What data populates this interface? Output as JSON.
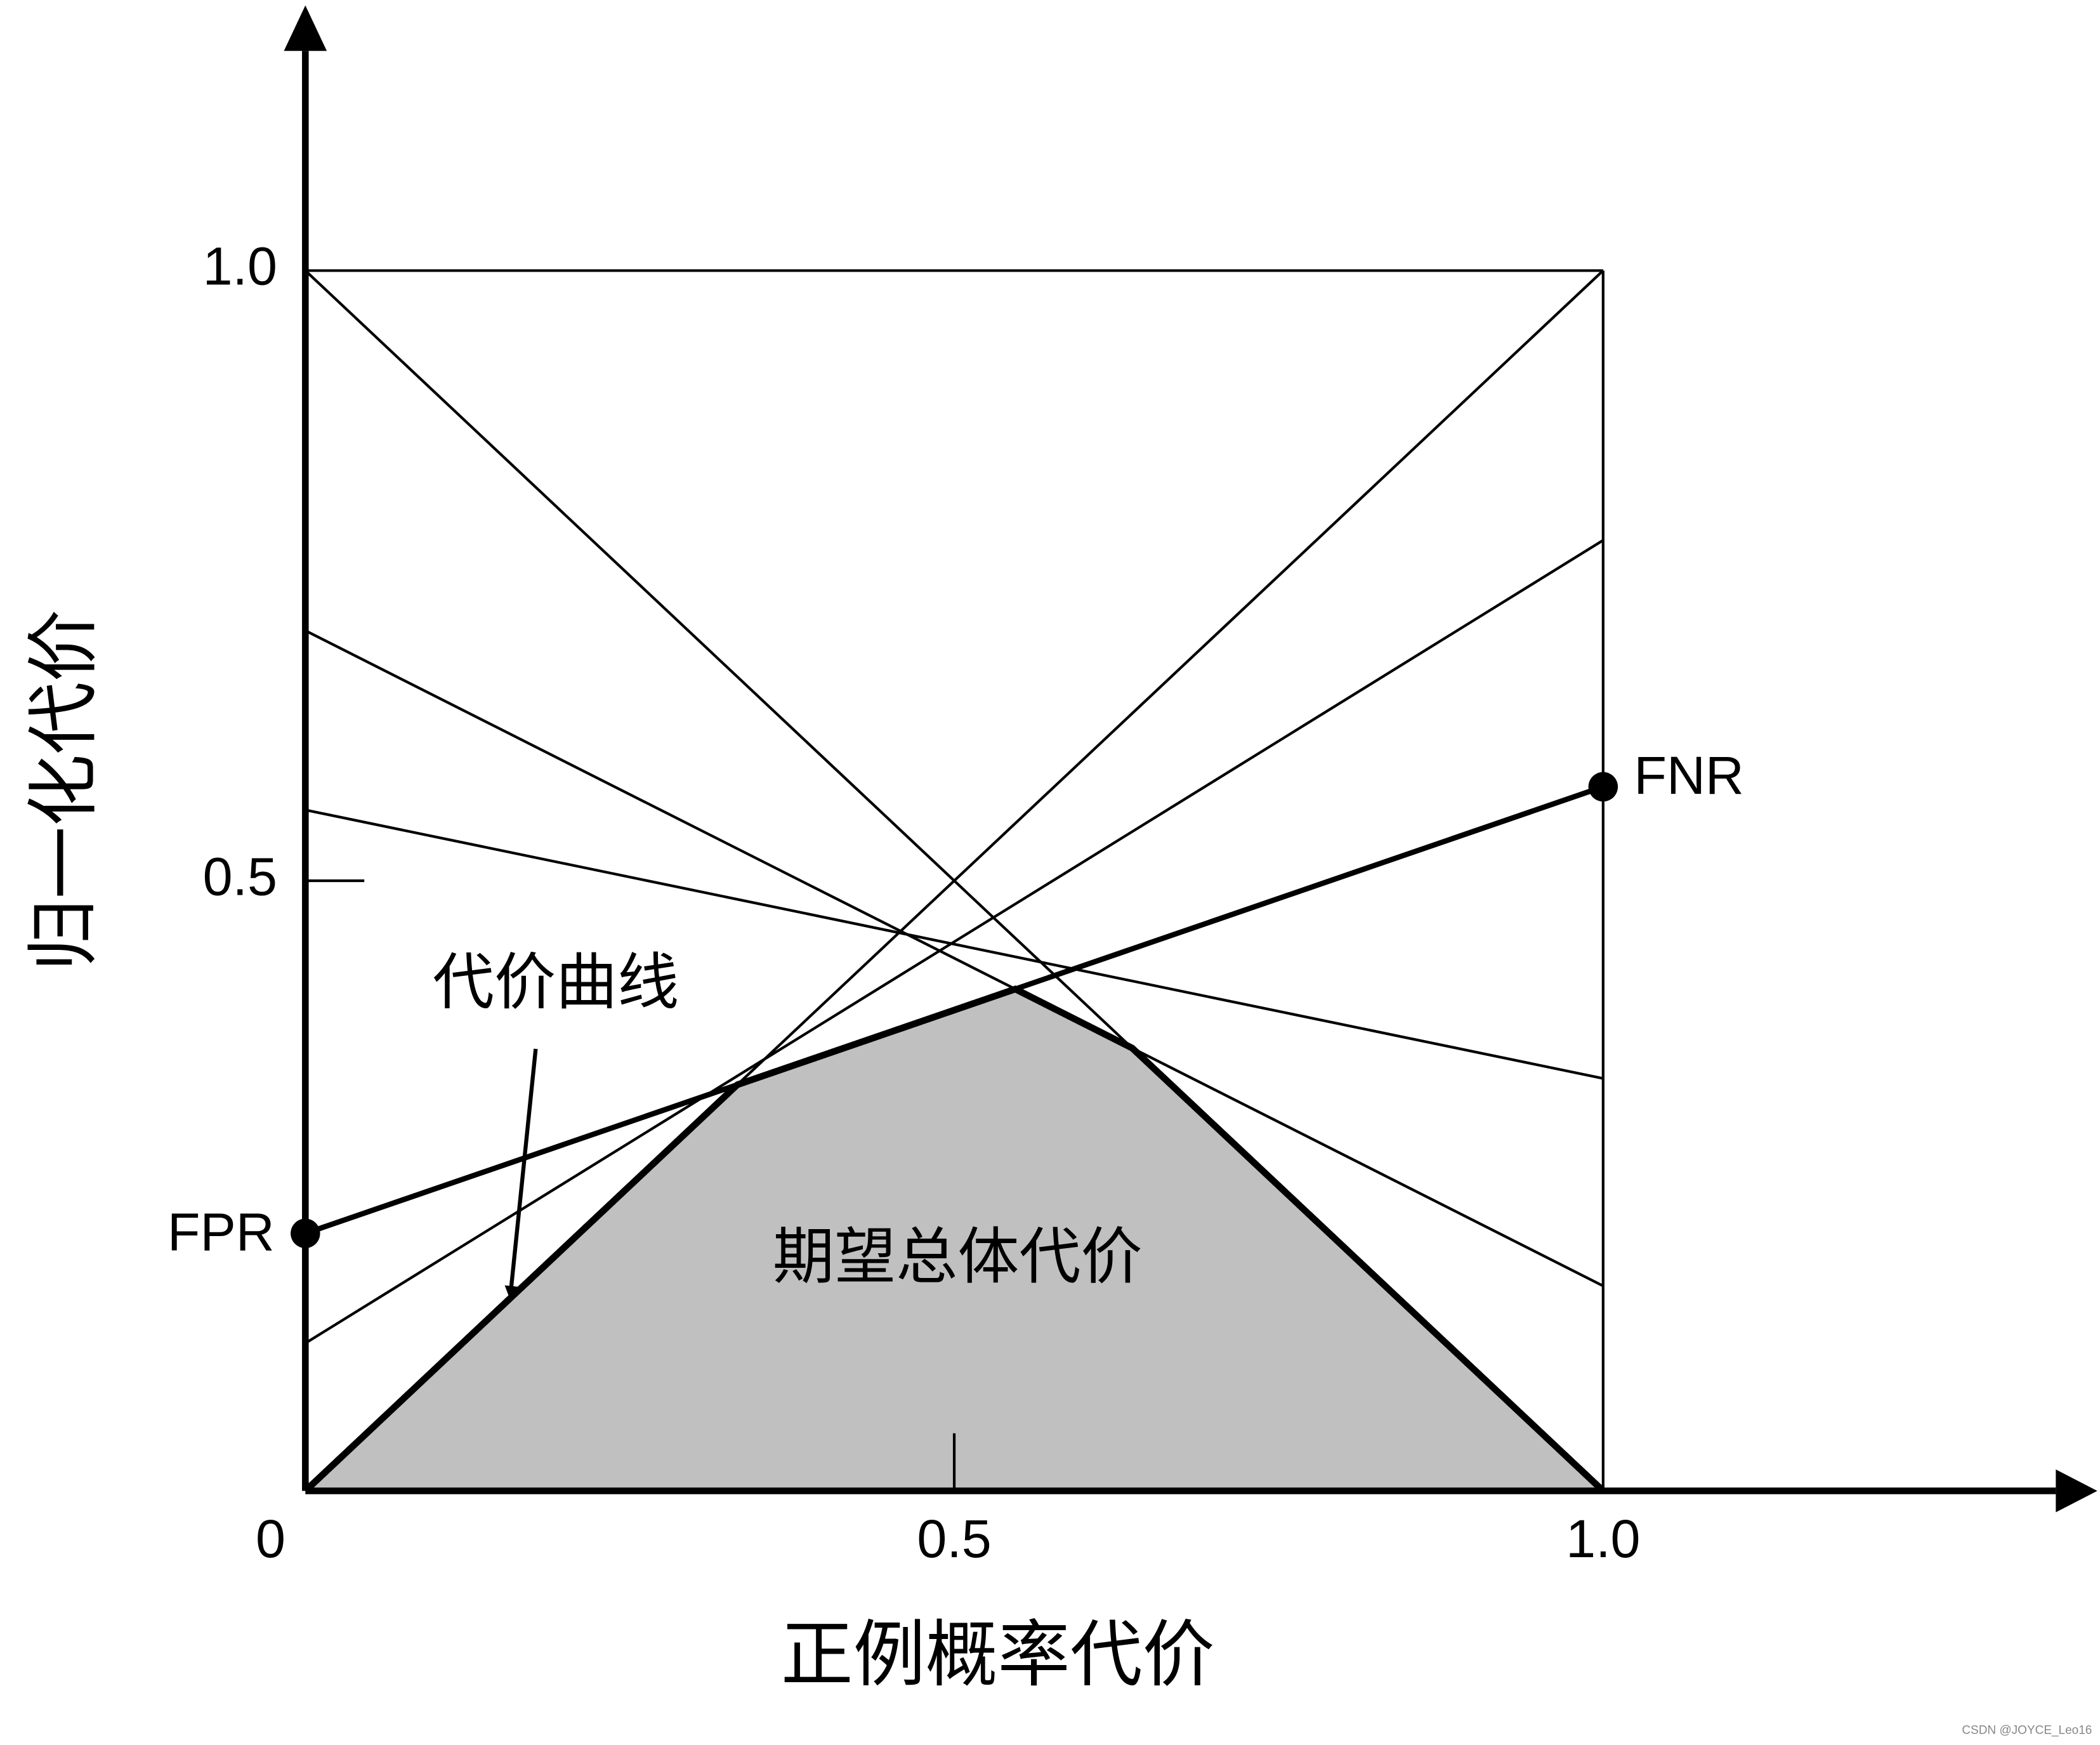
{
  "chart_data": {
    "type": "line",
    "x_label": "正例概率代价",
    "y_label": "归一化代价",
    "x": [
      0,
      1
    ],
    "series": [
      {
        "color": "#000000",
        "line_width": 2,
        "values": [
          1,
          0
        ]
      },
      {
        "color": "#000000",
        "line_width": 2,
        "values": [
          0,
          1
        ]
      },
      {
        "color": "#000000",
        "line_width": 2,
        "values": [
          0.705,
          0.168
        ]
      },
      {
        "color": "#000000",
        "line_width": 2,
        "values": [
          0.558,
          0.338
        ]
      },
      {
        "color": "#000000",
        "line_width": 2,
        "values": [
          0.121,
          0.779
        ]
      },
      {
        "color": "#000000",
        "line_width": 4,
        "values": [
          0.211,
          0.577
        ]
      }
    ],
    "xlim": [
      0,
      1
    ],
    "ylim": [
      0,
      1
    ],
    "xticks": [
      {
        "value": 0,
        "label": "0"
      },
      0.5,
      {
        "value": 1,
        "label": "1.0"
      }
    ],
    "yticks": [
      0.5,
      {
        "value": 1,
        "label": "1.0"
      }
    ],
    "area_color": "#c0c0c0",
    "annotations": {
      "fpr": "FPR",
      "fnr": "FNR",
      "curve": "代价曲线",
      "area": "期望总体代价",
      "watermark": "CSDN @JOYCE_Leo16"
    }
  }
}
